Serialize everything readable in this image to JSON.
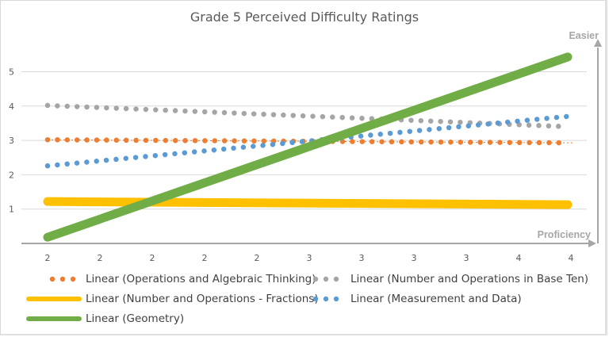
{
  "chart_data": {
    "type": "line",
    "title": "Grade 5 Perceived Difficulty Ratings",
    "xlabel": "Proficiency",
    "ylabel": "Easier",
    "ylim": [
      0,
      6
    ],
    "yticks": [
      1,
      2,
      3,
      4,
      5
    ],
    "grid": true,
    "categories": [
      "2",
      "2",
      "2",
      "2",
      "2",
      "3",
      "3",
      "3",
      "3",
      "4",
      "4"
    ],
    "legend_position": "bottom",
    "series": [
      {
        "name": "Linear (Operations and Algebraic Thinking)",
        "color": "#ED7D31",
        "style": "round-dot",
        "start": 3.02,
        "end": 2.93
      },
      {
        "name": "Linear (Number and Operations in Base Ten)",
        "color": "#A5A5A5",
        "style": "round-dot",
        "start": 4.02,
        "end": 3.4
      },
      {
        "name": "Linear (Number and Operations - Fractions)",
        "color": "#FFC000",
        "style": "solid-thick",
        "start": 1.22,
        "end": 1.13
      },
      {
        "name": "Linear (Measurement and Data)",
        "color": "#5B9BD5",
        "style": "round-dot",
        "start": 2.26,
        "end": 3.7
      },
      {
        "name": "Linear (Geometry)",
        "color": "#70AD47",
        "style": "solid-thick",
        "start": 0.18,
        "end": 5.43
      }
    ]
  }
}
